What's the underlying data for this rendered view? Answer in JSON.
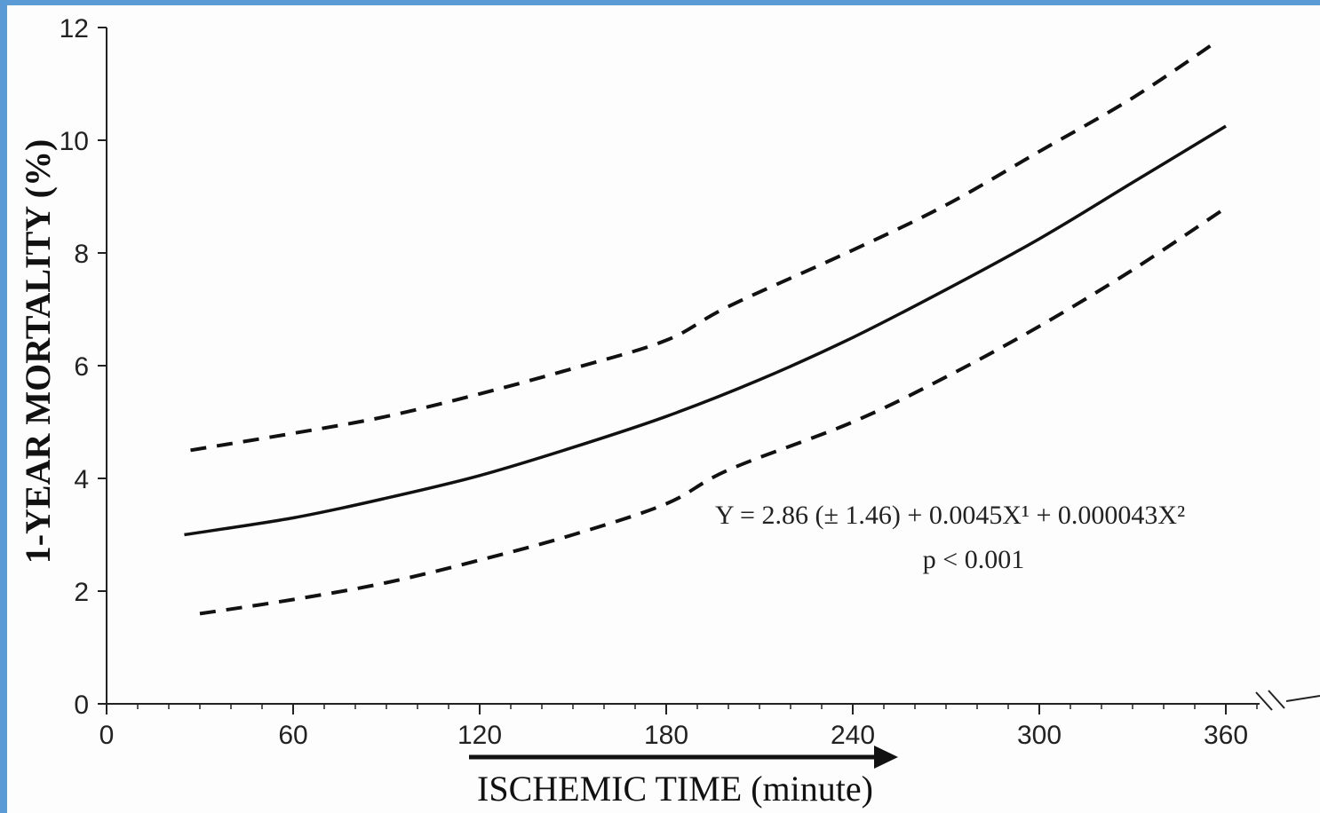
{
  "chart_data": {
    "type": "line",
    "xlabel": "ISCHEMIC TIME (minute)",
    "ylabel": "1-YEAR MORTALITY (%)",
    "xlim": [
      0,
      375
    ],
    "ylim": [
      0,
      12
    ],
    "x_ticks": [
      0,
      60,
      120,
      180,
      240,
      300,
      360
    ],
    "y_ticks": [
      0,
      2,
      4,
      6,
      8,
      10,
      12
    ],
    "grid": false,
    "axis_break": "x",
    "series": [
      {
        "style": "solid",
        "x": [
          25,
          60,
          90,
          120,
          150,
          180,
          210,
          240,
          270,
          300,
          330,
          360
        ],
        "y": [
          3.0,
          3.3,
          3.65,
          4.05,
          4.55,
          5.1,
          5.75,
          6.5,
          7.35,
          8.25,
          9.25,
          10.25
        ]
      },
      {
        "style": "dashed",
        "x": [
          27,
          60,
          90,
          120,
          150,
          180,
          200,
          240,
          270,
          300,
          330,
          357
        ],
        "y": [
          4.5,
          4.8,
          5.1,
          5.5,
          5.95,
          6.45,
          7.05,
          8.05,
          8.85,
          9.8,
          10.75,
          11.75
        ]
      },
      {
        "style": "dashed",
        "x": [
          30,
          60,
          90,
          120,
          150,
          180,
          200,
          240,
          270,
          300,
          330,
          360
        ],
        "y": [
          1.6,
          1.85,
          2.15,
          2.55,
          3.0,
          3.55,
          4.15,
          5.0,
          5.8,
          6.7,
          7.7,
          8.8
        ]
      }
    ],
    "annotations": {
      "equation": "Y = 2.86 (± 1.46) + 0.0045X¹ + 0.000043X²",
      "pvalue": "p < 0.001"
    }
  }
}
